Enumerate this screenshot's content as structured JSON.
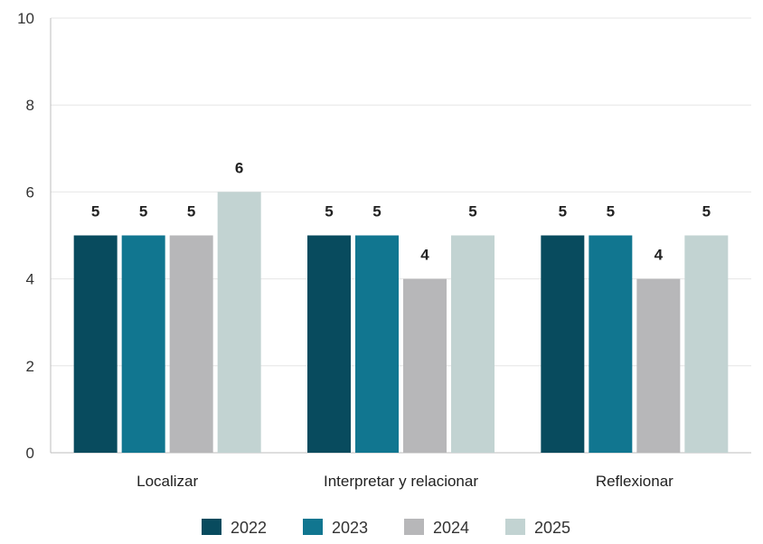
{
  "chart_data": {
    "type": "bar",
    "title": "",
    "xlabel": "",
    "ylabel": "",
    "categories": [
      "Localizar",
      "Interpretar y relacionar",
      "Reflexionar"
    ],
    "series": [
      {
        "name": "2022",
        "color": "#084b5e",
        "values": [
          5,
          5,
          5
        ]
      },
      {
        "name": "2023",
        "color": "#117690",
        "values": [
          5,
          5,
          5
        ]
      },
      {
        "name": "2024",
        "color": "#b7b7b9",
        "values": [
          5,
          4,
          4
        ]
      },
      {
        "name": "2025",
        "color": "#c2d3d2",
        "values": [
          6,
          5,
          5
        ]
      }
    ],
    "ylim": [
      0,
      10
    ],
    "yticks": [
      0,
      2,
      4,
      6,
      8,
      10
    ],
    "grid": true,
    "legend_position": "bottom-center",
    "data_labels": true
  }
}
